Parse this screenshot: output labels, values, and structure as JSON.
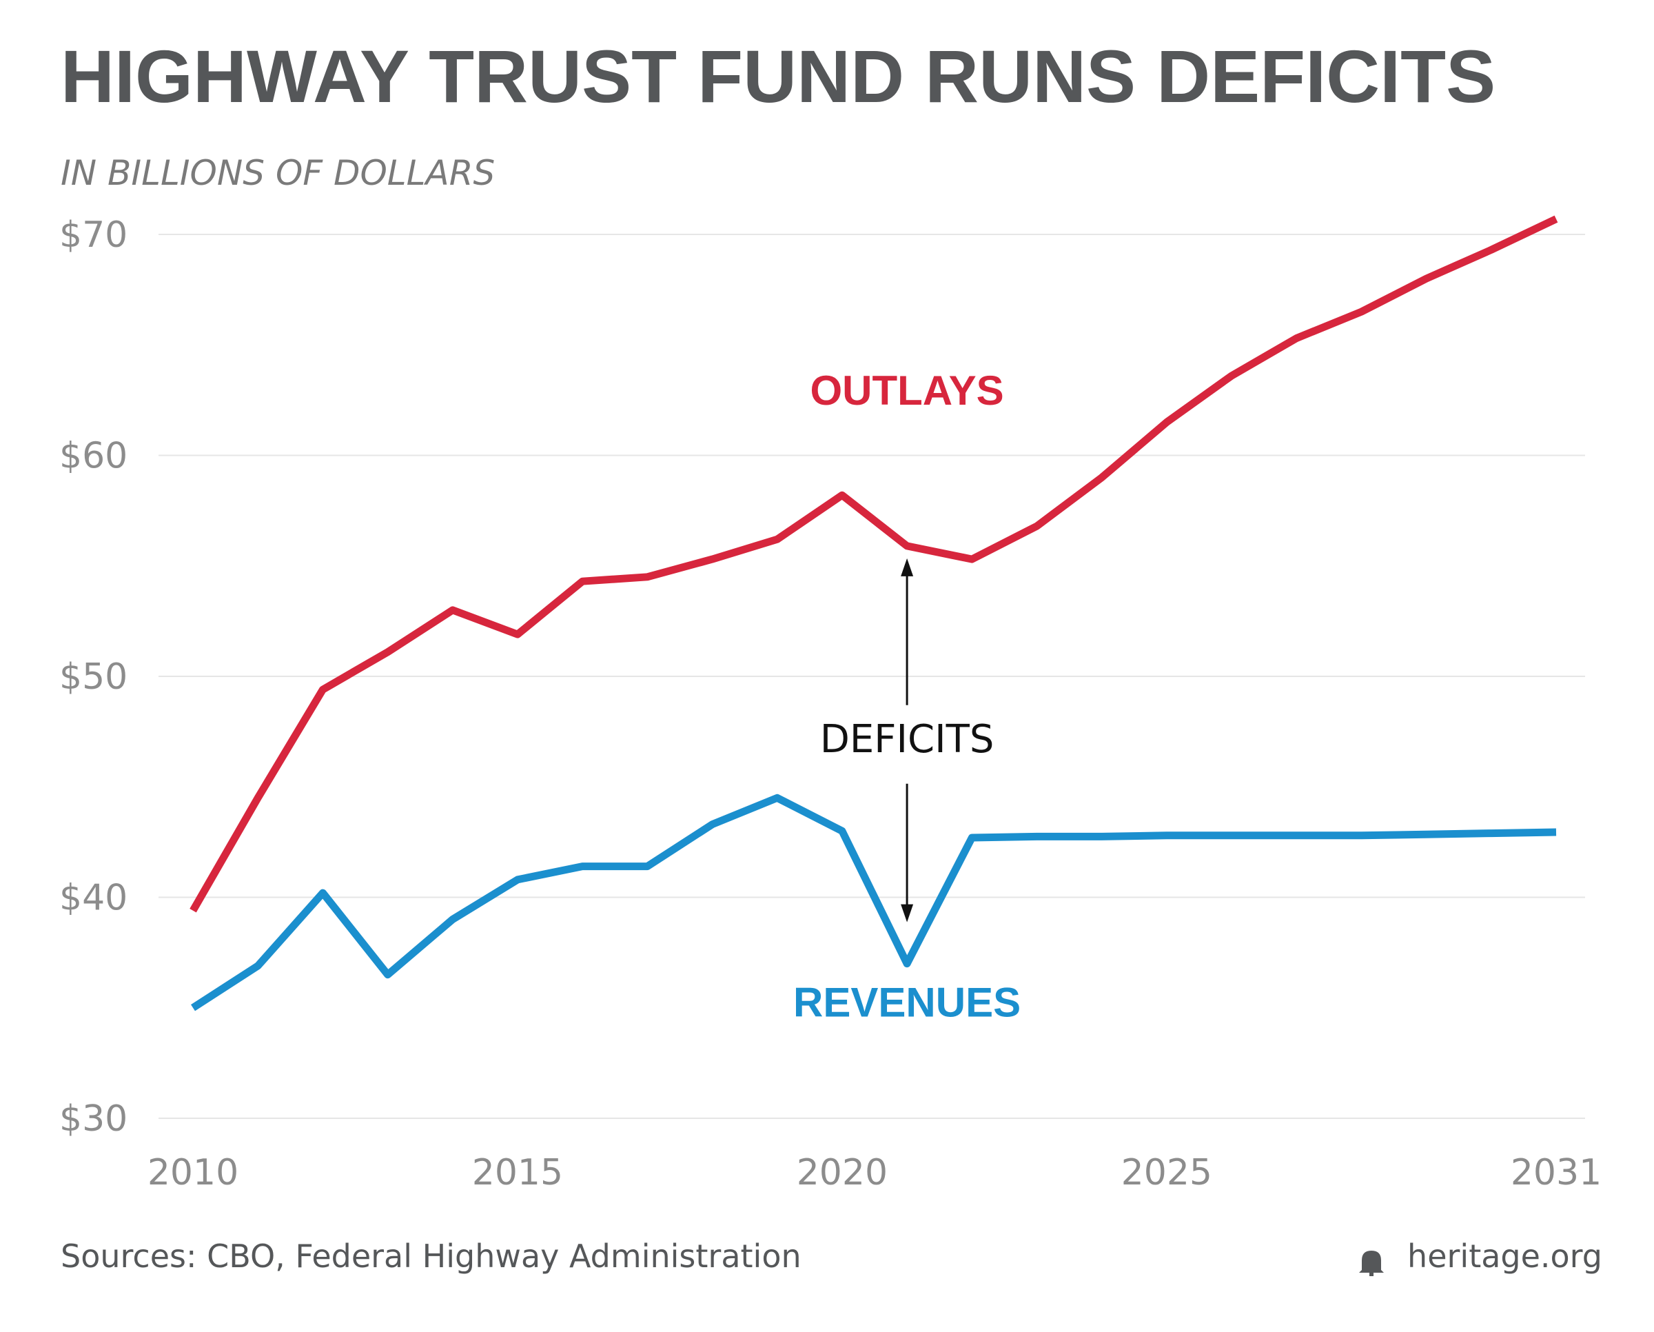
{
  "chart_data": {
    "type": "line",
    "title": "HIGHWAY TRUST FUND RUNS DEFICITS",
    "subtitle": "IN BILLIONS OF DOLLARS",
    "xlim": [
      2010,
      2031
    ],
    "ylim": [
      30,
      70
    ],
    "x_ticks": [
      2010,
      2015,
      2020,
      2025,
      2031
    ],
    "x_tick_labels": [
      "2010",
      "2015",
      "2020",
      "2025",
      "2031"
    ],
    "y_ticks": [
      30,
      40,
      50,
      60,
      70
    ],
    "y_tick_labels": [
      "$30",
      "$40",
      "$50",
      "$60",
      "$70"
    ],
    "grid": "horizontal",
    "x": [
      2010,
      2011,
      2012,
      2013,
      2014,
      2015,
      2016,
      2017,
      2018,
      2019,
      2020,
      2021,
      2022,
      2023,
      2024,
      2025,
      2026,
      2027,
      2028,
      2029,
      2030,
      2031
    ],
    "series": [
      {
        "name": "OUTLAYS",
        "color": "#d7263d",
        "values": [
          39.4,
          44.5,
          49.4,
          51.1,
          53.0,
          51.9,
          54.3,
          54.5,
          55.3,
          56.2,
          58.2,
          55.9,
          55.3,
          56.8,
          59.0,
          61.5,
          63.6,
          65.3,
          66.5,
          68.0,
          69.3,
          70.7
        ]
      },
      {
        "name": "REVENUES",
        "color": "#1b8fce",
        "values": [
          35.0,
          36.9,
          40.2,
          36.5,
          39.0,
          40.8,
          41.4,
          41.4,
          43.3,
          44.5,
          43.0,
          37.0,
          42.7,
          42.75,
          42.75,
          42.8,
          42.8,
          42.8,
          42.8,
          42.85,
          42.9,
          42.95
        ]
      }
    ],
    "annotations": [
      {
        "text": "DEFICITS",
        "x": 2021,
        "from_y": 55.9,
        "to_y": 37.0
      }
    ]
  },
  "labels": {
    "outlays": "OUTLAYS",
    "revenues": "REVENUES",
    "deficits": "DEFICITS"
  },
  "footer": {
    "sources": "Sources: CBO, Federal Highway Administration",
    "site": "heritage.org",
    "logo_icon": "liberty-bell-icon"
  },
  "colors": {
    "title": "#555759",
    "outlays": "#d7263d",
    "revenues": "#1b8fce"
  }
}
